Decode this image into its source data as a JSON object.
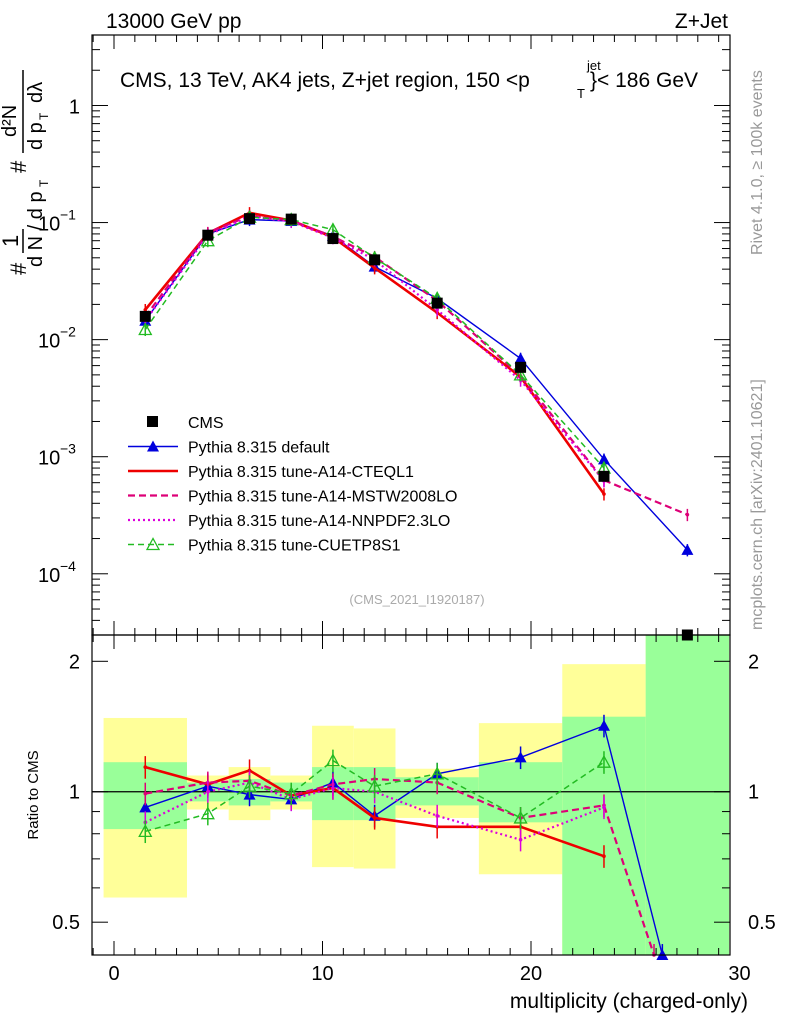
{
  "header": {
    "left": "13000 GeV pp",
    "right": "Z+Jet",
    "side_rivet": "Rivet 4.1.0, ≥ 100k events",
    "side_mcplots": "mcplots.cern.ch [arXiv:2401.10621]"
  },
  "colors": {
    "cms": "#000000",
    "default": "#0000dd",
    "cteql1": "#ee0000",
    "mstw": "#dd0077",
    "nnpdf": "#dd00dd",
    "cuetp8s1": "#22bb22",
    "band_inner": "#99ff99",
    "band_outer": "#ffff99"
  },
  "chart_data": [
    {
      "type": "line",
      "panel": "main",
      "title": "CMS, 13 TeV, AK4 jets, Z+jet region, 150 <p",
      "title_sup": "jet",
      "title_sub": "T",
      "title_end": "}< 186 GeV",
      "ylabel": "1/N dN/dp_T dλ",
      "ylabel_parts": {
        "one": "1",
        "hash": "#",
        "num": "d²N",
        "den_a": "d N / d p",
        "den_b": "d p",
        "den_c": "dλ",
        "sub": "T"
      },
      "yscale": "log",
      "ylim": [
        3e-05,
        4
      ],
      "xlim": [
        -1,
        30
      ],
      "watermark": "(CMS_2021_I1920187)",
      "ytick_labels": {
        "1": "1",
        "0.1": "10",
        "0.1_exp": "−1",
        "0.01": "10",
        "0.01_exp": "−2",
        "0.001": "10",
        "0.001_exp": "−3",
        "0.0001": "10",
        "0.0001_exp": "−4"
      },
      "legend": [
        {
          "key": "cms",
          "label": "CMS"
        },
        {
          "key": "default",
          "label": "Pythia 8.315 default"
        },
        {
          "key": "cteql1",
          "label": "Pythia 8.315 tune-A14-CTEQL1"
        },
        {
          "key": "mstw",
          "label": "Pythia 8.315 tune-A14-MSTW2008LO"
        },
        {
          "key": "nnpdf",
          "label": "Pythia 8.315 tune-A14-NNPDF2.3LO"
        },
        {
          "key": "cuetp8s1",
          "label": "Pythia 8.315 tune-CUETP8S1"
        }
      ],
      "cms": {
        "x": [
          1.5,
          4.5,
          6.5,
          8.5,
          10.5,
          12.5,
          15.5,
          19.5,
          23.5,
          27.5
        ],
        "y": [
          0.0158,
          0.078,
          0.108,
          0.107,
          0.073,
          0.048,
          0.0205,
          0.0058,
          0.00068,
          3e-05
        ]
      },
      "series": [
        {
          "key": "default",
          "name": "Pythia 8.315 default",
          "x": [
            1.5,
            4.5,
            6.5,
            8.5,
            10.5,
            12.5,
            15.5,
            19.5,
            23.5,
            27.5
          ],
          "y": [
            0.0145,
            0.08,
            0.106,
            0.103,
            0.077,
            0.042,
            0.0225,
            0.0069,
            0.00095,
            0.00016
          ]
        },
        {
          "key": "cteql1",
          "name": "Pythia 8.315 tune-A14-CTEQL1",
          "x": [
            1.5,
            4.5,
            6.5,
            8.5,
            10.5,
            12.5,
            15.5,
            19.5,
            23.5
          ],
          "y": [
            0.018,
            0.081,
            0.121,
            0.104,
            0.075,
            0.041,
            0.017,
            0.0048,
            0.00048
          ]
        },
        {
          "key": "mstw",
          "name": "Pythia 8.315 tune-A14-MSTW2008LO",
          "x": [
            1.5,
            4.5,
            6.5,
            8.5,
            10.5,
            12.5,
            15.5,
            19.5,
            23.5,
            27.5
          ],
          "y": [
            0.0157,
            0.082,
            0.114,
            0.104,
            0.076,
            0.051,
            0.0215,
            0.0049,
            0.00063,
            0.00032
          ]
        },
        {
          "key": "nnpdf",
          "name": "Pythia 8.315 tune-A14-NNPDF2.3LO",
          "x": [
            1.5,
            4.5,
            6.5,
            8.5,
            10.5,
            12.5,
            15.5,
            19.5,
            23.5
          ],
          "y": [
            0.0145,
            0.078,
            0.113,
            0.102,
            0.074,
            0.048,
            0.018,
            0.0045,
            0.00062
          ]
        },
        {
          "key": "cuetp8s1",
          "name": "Pythia 8.315 tune-CUETP8S1",
          "x": [
            1.5,
            4.5,
            6.5,
            8.5,
            10.5,
            12.5,
            15.5,
            19.5,
            23.5
          ],
          "y": [
            0.0122,
            0.07,
            0.111,
            0.106,
            0.087,
            0.05,
            0.0225,
            0.005,
            0.0008
          ]
        }
      ]
    },
    {
      "type": "line",
      "panel": "ratio",
      "ylabel": "Ratio to CMS",
      "xlabel": "multiplicity (charged-only)",
      "yscale": "log",
      "ylim": [
        0.42,
        2.3
      ],
      "xlim": [
        -1,
        30
      ],
      "ytick_labels": [
        "0.5",
        "1",
        "2"
      ],
      "xtick_labels": [
        "0",
        "10",
        "20",
        "30"
      ],
      "bands": [
        {
          "x0": -0.5,
          "x1": 3.5,
          "inner": [
            0.82,
            1.17
          ],
          "outer": [
            0.57,
            1.48
          ]
        },
        {
          "x0": 3.5,
          "x1": 5.5,
          "inner": [
            0.95,
            1.05
          ],
          "outer": [
            0.91,
            1.09
          ]
        },
        {
          "x0": 5.5,
          "x1": 7.5,
          "inner": [
            0.93,
            1.07
          ],
          "outer": [
            0.86,
            1.14
          ]
        },
        {
          "x0": 7.5,
          "x1": 9.5,
          "inner": [
            0.95,
            1.05
          ],
          "outer": [
            0.91,
            1.09
          ]
        },
        {
          "x0": 9.5,
          "x1": 11.5,
          "inner": [
            0.86,
            1.14
          ],
          "outer": [
            0.67,
            1.42
          ]
        },
        {
          "x0": 11.5,
          "x1": 13.5,
          "inner": [
            0.86,
            1.14
          ],
          "outer": [
            0.665,
            1.4
          ]
        },
        {
          "x0": 13.5,
          "x1": 17.5,
          "inner": [
            0.93,
            1.08
          ],
          "outer": [
            0.87,
            1.13
          ]
        },
        {
          "x0": 17.5,
          "x1": 21.5,
          "inner": [
            0.85,
            1.17
          ],
          "outer": [
            0.645,
            1.44
          ]
        },
        {
          "x0": 21.5,
          "x1": 25.5,
          "inner": [
            0.42,
            1.49
          ],
          "outer": [
            0.42,
            1.97
          ]
        },
        {
          "x0": 25.5,
          "x1": 29.5,
          "inner": [
            0.42,
            2.3
          ],
          "outer": [
            0.42,
            2.3
          ]
        }
      ],
      "series": [
        {
          "key": "default",
          "x": [
            1.5,
            4.5,
            6.5,
            8.5,
            10.5,
            12.5,
            15.5,
            19.5,
            23.5,
            26.3
          ],
          "y": [
            0.92,
            1.03,
            0.985,
            0.96,
            1.05,
            0.88,
            1.1,
            1.2,
            1.42,
            0.42
          ]
        },
        {
          "key": "cteql1",
          "x": [
            1.5,
            4.5,
            6.5,
            8.5,
            10.5,
            12.5,
            15.5,
            19.5,
            23.5
          ],
          "y": [
            1.14,
            1.04,
            1.12,
            0.98,
            1.02,
            0.87,
            0.83,
            0.83,
            0.71
          ]
        },
        {
          "key": "mstw",
          "x": [
            1.5,
            4.5,
            6.5,
            8.5,
            10.5,
            12.5,
            15.5,
            19.5,
            23.5,
            25.9
          ],
          "y": [
            0.99,
            1.05,
            1.06,
            0.98,
            1.04,
            1.07,
            1.05,
            0.87,
            0.93,
            0.42
          ]
        },
        {
          "key": "nnpdf",
          "x": [
            1.5,
            4.5,
            6.5,
            8.5,
            10.5,
            12.5,
            15.5,
            19.5,
            23.5
          ],
          "y": [
            0.85,
            1.0,
            1.05,
            0.96,
            1.02,
            1.0,
            0.88,
            0.775,
            0.92
          ]
        },
        {
          "key": "cuetp8s1",
          "x": [
            1.5,
            4.5,
            6.5,
            8.5,
            10.5,
            12.5,
            15.5,
            19.5,
            23.5
          ],
          "y": [
            0.81,
            0.89,
            1.03,
            0.99,
            1.18,
            1.03,
            1.1,
            0.87,
            1.17
          ]
        }
      ]
    }
  ]
}
